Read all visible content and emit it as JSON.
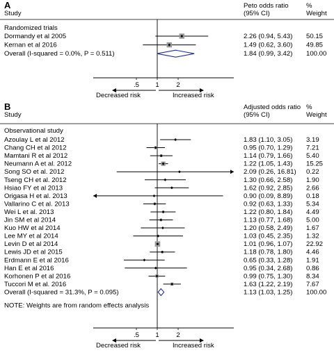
{
  "chart_data": [
    {
      "type": "forest",
      "panel": "A",
      "header": {
        "study": "Study",
        "estimate": "Peto odds ratio",
        "ci": "(95% CI)",
        "weight_pct": "%",
        "weight": "Weight"
      },
      "group_label": "Randomized trials",
      "rows": [
        {
          "study": "Dormandy et al 2005",
          "or": 2.26,
          "lo": 0.94,
          "hi": 5.43,
          "label": "2.26 (0.94, 5.43)",
          "weight": "50.15"
        },
        {
          "study": "Kernan et al 2016",
          "or": 1.49,
          "lo": 0.62,
          "hi": 3.6,
          "label": "1.49 (0.62, 3.60)",
          "weight": "49.85"
        }
      ],
      "overall": {
        "study": "Overall (I-squared = 0.0%, P = 0.511)",
        "or": 1.84,
        "lo": 0.99,
        "hi": 3.42,
        "label": "1.84 (0.99, 3.42)",
        "weight": "100.00"
      },
      "x_ticks": [
        {
          "value": 0.5,
          "label": ".5"
        },
        {
          "value": 1,
          "label": "1"
        },
        {
          "value": 2,
          "label": "2"
        }
      ],
      "x_scale": "log",
      "xlim": [
        0.1,
        20
      ],
      "arrows": {
        "left": "Decreased risk",
        "right": "Increased risk"
      }
    },
    {
      "type": "forest",
      "panel": "B",
      "header": {
        "study": "Study",
        "estimate": "Adjusted odds ratio",
        "ci": "(95% CI)",
        "weight_pct": "%",
        "weight": "Weight"
      },
      "group_label": "Observational study",
      "rows": [
        {
          "study": "Azoulay L et al 2012",
          "or": 1.83,
          "lo": 1.1,
          "hi": 3.05,
          "label": "1.83 (1.10, 3.05)",
          "weight": "3.19"
        },
        {
          "study": "Chang CH et al 2012",
          "or": 0.95,
          "lo": 0.7,
          "hi": 1.29,
          "label": "0.95 (0.70, 1.29)",
          "weight": "7.21"
        },
        {
          "study": "Mamtani R et al 2012",
          "or": 1.14,
          "lo": 0.79,
          "hi": 1.66,
          "label": "1.14 (0.79, 1.66)",
          "weight": "5.40"
        },
        {
          "study": "Neumann A et al. 2012",
          "or": 1.22,
          "lo": 1.05,
          "hi": 1.43,
          "label": "1.22 (1.05, 1.43)",
          "weight": "15.25"
        },
        {
          "study": "Song SO et al. 2012",
          "or": 2.09,
          "lo": 0.26,
          "hi": 16.81,
          "label": "2.09 (0.26, 16.81)",
          "weight": "0.22"
        },
        {
          "study": "Tseng CH et al. 2012",
          "or": 1.3,
          "lo": 0.66,
          "hi": 2.58,
          "label": "1.30 (0.66, 2.58)",
          "weight": "1.90"
        },
        {
          "study": "Hsiao FY et al 2013",
          "or": 1.62,
          "lo": 0.92,
          "hi": 2.85,
          "label": "1.62 (0.92, 2.85)",
          "weight": "2.66"
        },
        {
          "study": "Origasa H et al. 2013",
          "or": 0.9,
          "lo": 0.09,
          "hi": 8.89,
          "label": "0.90 (0.09, 8.89)",
          "weight": "0.18"
        },
        {
          "study": "Vallarino C et al. 2013",
          "or": 0.92,
          "lo": 0.63,
          "hi": 1.33,
          "label": "0.92 (0.63, 1.33)",
          "weight": "5.34"
        },
        {
          "study": "Wei L et al. 2013",
          "or": 1.22,
          "lo": 0.8,
          "hi": 1.84,
          "label": "1.22 (0.80, 1.84)",
          "weight": "4.49"
        },
        {
          "study": "Jin SM et al 2014",
          "or": 1.13,
          "lo": 0.77,
          "hi": 1.68,
          "label": "1.13 (0.77, 1.68)",
          "weight": "5.00"
        },
        {
          "study": "Kuo HW et al 2014",
          "or": 1.2,
          "lo": 0.58,
          "hi": 2.49,
          "label": "1.20 (0.58, 2.49)",
          "weight": "1.67"
        },
        {
          "study": "Lee MY et al 2014",
          "or": 1.03,
          "lo": 0.45,
          "hi": 2.35,
          "label": "1.03 (0.45, 2.35)",
          "weight": "1.32"
        },
        {
          "study": "Levin D et al 2014",
          "or": 1.01,
          "lo": 0.96,
          "hi": 1.07,
          "label": "1.01 (0.96, 1.07)",
          "weight": "22.92"
        },
        {
          "study": "Lewis JD et al 2015",
          "or": 1.18,
          "lo": 0.78,
          "hi": 1.8,
          "label": "1.18 (0.78, 1.80)",
          "weight": "4.46"
        },
        {
          "study": "Erdmann E et al 2016",
          "or": 0.65,
          "lo": 0.33,
          "hi": 1.28,
          "label": "0.65 (0.33, 1.28)",
          "weight": "1.91"
        },
        {
          "study": "Han E et al 2016",
          "or": 0.95,
          "lo": 0.34,
          "hi": 2.68,
          "label": "0.95 (0.34, 2.68)",
          "weight": "0.86"
        },
        {
          "study": "Korhonen P et al 2016",
          "or": 0.99,
          "lo": 0.75,
          "hi": 1.3,
          "label": "0.99 (0.75, 1.30)",
          "weight": "8.34"
        },
        {
          "study": "Tuccori M et al. 2016",
          "or": 1.63,
          "lo": 1.22,
          "hi": 2.19,
          "label": "1.63 (1.22, 2.19)",
          "weight": "7.67"
        }
      ],
      "overall": {
        "study": "Overall (I-squared = 31.3%, P = 0.095)",
        "or": 1.13,
        "lo": 1.03,
        "hi": 1.25,
        "label": "1.13 (1.03, 1.25)",
        "weight": "100.00"
      },
      "note": "NOTE: Weights are from random effects analysis",
      "x_ticks": [
        {
          "value": 0.5,
          "label": ".5"
        },
        {
          "value": 1,
          "label": "1"
        },
        {
          "value": 2,
          "label": "2"
        }
      ],
      "x_scale": "log",
      "xlim": [
        0.1,
        20
      ],
      "arrows": {
        "left": "Decreased risk",
        "right": "Increased risk"
      }
    }
  ],
  "colors": {
    "line": "#000000",
    "box": "#9a9a9a",
    "diamond": "#1f2f8f"
  }
}
